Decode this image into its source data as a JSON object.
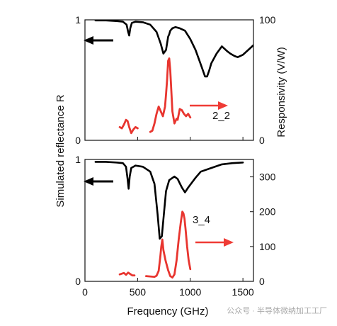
{
  "chart_data": {
    "type": "line",
    "xlabel": "Frequency (GHz)",
    "y_left_label": "Simulated reflectance R",
    "y_right_label": "Responsivity (V/W)",
    "x_ticks": [
      0,
      500,
      1000,
      1500
    ],
    "xlim": [
      0,
      1600
    ],
    "panels": [
      {
        "label": "2_2",
        "left_ticks": [
          0,
          1
        ],
        "right_ticks": [
          0,
          100
        ],
        "ylim_left": [
          0,
          1
        ],
        "ylim_right": [
          0,
          100
        ],
        "series": [
          {
            "axis": "left",
            "color": "#000000",
            "x": [
              100,
              200,
              300,
              360,
              395,
              410,
              420,
              430,
              445,
              480,
              550,
              620,
              680,
              720,
              745,
              770,
              790,
              800,
              810,
              830,
              860,
              900,
              950,
              1000,
              1050,
              1100,
              1140,
              1160,
              1180,
              1200,
              1250,
              1300,
              1350,
              1380,
              1420,
              1450,
              1500,
              1550,
              1600
            ],
            "y": [
              0.995,
              0.995,
              0.99,
              0.985,
              0.96,
              0.9,
              0.87,
              0.93,
              0.975,
              0.985,
              0.98,
              0.96,
              0.9,
              0.8,
              0.72,
              0.75,
              0.86,
              0.88,
              0.91,
              0.93,
              0.94,
              0.93,
              0.91,
              0.84,
              0.75,
              0.63,
              0.53,
              0.53,
              0.58,
              0.64,
              0.72,
              0.78,
              0.74,
              0.72,
              0.7,
              0.69,
              0.71,
              0.75,
              0.79
            ]
          },
          {
            "axis": "right",
            "color": "#e8352f",
            "x": [
              330,
              350,
              370,
              390,
              405,
              420,
              440,
              460,
              480,
              500
            ],
            "y": [
              11,
              10,
              13,
              17,
              16,
              11,
              6,
              9,
              11,
              10
            ]
          },
          {
            "axis": "right",
            "color": "#e8352f",
            "x": [
              620,
              640,
              660,
              680,
              700,
              720,
              740,
              760,
              770,
              780,
              790,
              800,
              810,
              830,
              850,
              870,
              880,
              900,
              920,
              940,
              960,
              980,
              1000
            ],
            "y": [
              7,
              8,
              14,
              22,
              28,
              24,
              20,
              28,
              38,
              50,
              66,
              68,
              58,
              24,
              14,
              18,
              17,
              26,
              25,
              22,
              20,
              22,
              19
            ]
          }
        ]
      },
      {
        "label": "3_4",
        "left_ticks": [
          0,
          1
        ],
        "right_ticks": [
          0,
          100,
          200,
          300
        ],
        "ylim_left": [
          0,
          1
        ],
        "ylim_right": [
          0,
          350
        ],
        "series": [
          {
            "axis": "left",
            "color": "#000000",
            "x": [
              100,
              200,
              300,
              360,
              390,
              405,
              415,
              425,
              440,
              480,
              550,
              620,
              660,
              690,
              710,
              730,
              750,
              770,
              800,
              850,
              880,
              920,
              950,
              980,
              1050,
              1100,
              1200,
              1300,
              1400,
              1500
            ],
            "y": [
              0.98,
              0.98,
              0.975,
              0.97,
              0.94,
              0.84,
              0.76,
              0.86,
              0.93,
              0.95,
              0.94,
              0.9,
              0.8,
              0.55,
              0.35,
              0.37,
              0.56,
              0.74,
              0.83,
              0.86,
              0.84,
              0.77,
              0.73,
              0.77,
              0.85,
              0.9,
              0.93,
              0.96,
              0.97,
              0.975
            ]
          },
          {
            "axis": "right",
            "color": "#e8352f",
            "x": [
              330,
              350,
              370,
              390,
              410,
              430,
              450,
              470
            ],
            "y": [
              20,
              22,
              24,
              19,
              25,
              21,
              17,
              17
            ]
          },
          {
            "axis": "right",
            "color": "#e8352f",
            "x": [
              580,
              620,
              660,
              680,
              700,
              715,
              725,
              735,
              745,
              765,
              790,
              810,
              830,
              850,
              870,
              890,
              910,
              925,
              935,
              945,
              955,
              970,
              985,
              1000
            ],
            "y": [
              15,
              14,
              13,
              16,
              30,
              70,
              100,
              120,
              90,
              60,
              32,
              15,
              11,
              20,
              60,
              120,
              170,
              200,
              195,
              180,
              150,
              100,
              60,
              35
            ]
          }
        ]
      }
    ]
  },
  "watermark_text": "公众号 · 半导体微纳加工工厂"
}
